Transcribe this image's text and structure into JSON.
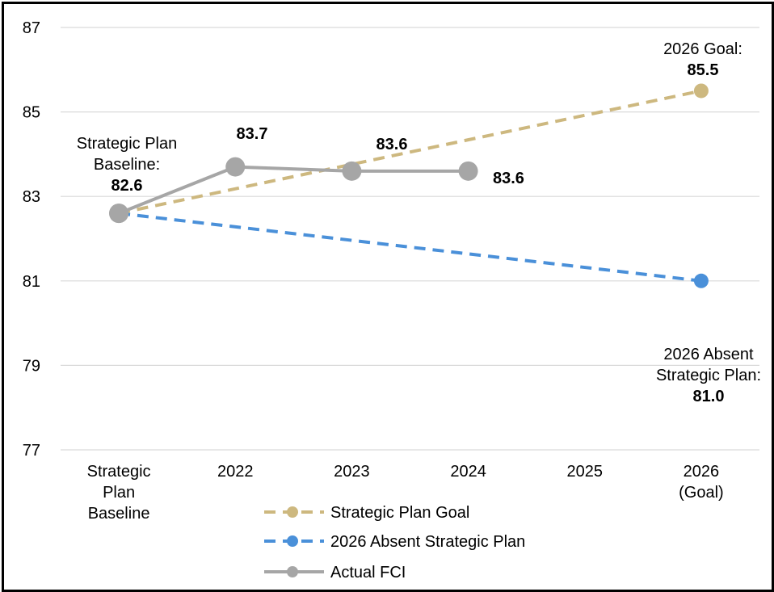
{
  "chart_data": {
    "type": "line",
    "categories": [
      "Strategic Plan Baseline",
      "2022",
      "2023",
      "2024",
      "2025",
      "2026 (Goal)"
    ],
    "category_label_lines": [
      [
        "Strategic",
        "Plan",
        "Baseline"
      ],
      [
        "2022"
      ],
      [
        "2023"
      ],
      [
        "2024"
      ],
      [
        "2025"
      ],
      [
        "2026",
        "(Goal)"
      ]
    ],
    "ylim": [
      77,
      87
    ],
    "yticks": [
      77,
      79,
      81,
      83,
      85,
      87
    ],
    "grid": true,
    "legend_position": "bottom",
    "series": [
      {
        "name": "Strategic Plan Goal",
        "color": "#cdb87f",
        "dash": true,
        "points": [
          [
            0,
            82.6
          ],
          [
            5,
            85.5
          ]
        ]
      },
      {
        "name": "2026 Absent Strategic Plan",
        "color": "#4a90d9",
        "dash": true,
        "points": [
          [
            0,
            82.6
          ],
          [
            5,
            81.0
          ]
        ]
      },
      {
        "name": "Actual FCI",
        "color": "#a6a6a6",
        "dash": false,
        "points": [
          [
            0,
            82.6
          ],
          [
            1,
            83.7
          ],
          [
            2,
            83.6
          ],
          [
            3,
            83.6
          ]
        ]
      }
    ],
    "annotations": [
      {
        "id": "baseline",
        "lines": [
          "Strategic Plan",
          "Baseline:"
        ],
        "value": "82.6"
      },
      {
        "id": "y2022",
        "lines": [],
        "value": "83.7"
      },
      {
        "id": "y2023",
        "lines": [],
        "value": "83.6"
      },
      {
        "id": "y2024",
        "lines": [],
        "value": "83.6"
      },
      {
        "id": "goal2026",
        "lines": [
          "2026 Goal:"
        ],
        "value": "85.5"
      },
      {
        "id": "absent2026",
        "lines": [
          "2026 Absent",
          "Strategic Plan:"
        ],
        "value": "81.0"
      }
    ]
  }
}
